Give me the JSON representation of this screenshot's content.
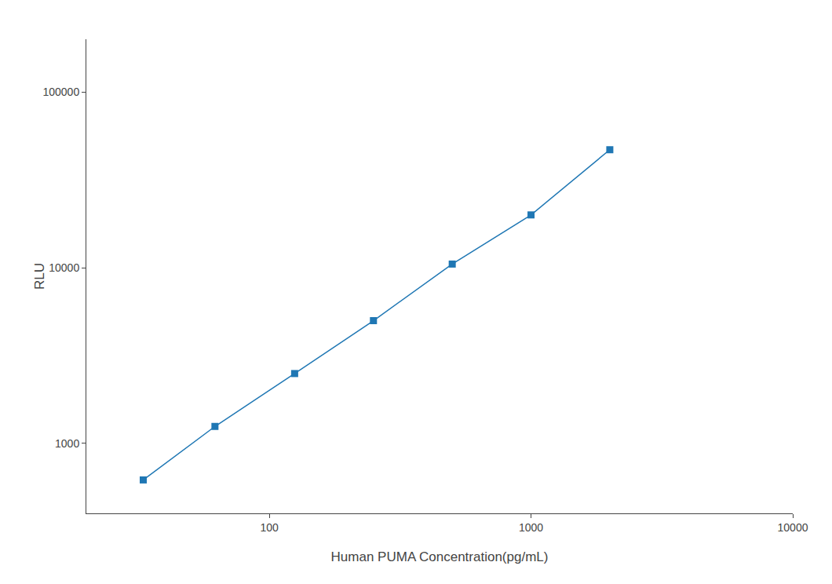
{
  "chart_data": {
    "type": "line",
    "x": [
      33,
      62,
      125,
      250,
      500,
      1000,
      2000
    ],
    "values": [
      620,
      1250,
      2500,
      5000,
      10500,
      20000,
      47000
    ],
    "xlabel": "Human PUMA Concentration(pg/mL)",
    "ylabel": "RLU",
    "log": true,
    "xlim": [
      20,
      10000
    ],
    "ylim": [
      400,
      200000
    ],
    "xticks": [
      100,
      1000,
      10000
    ],
    "yticks": [
      1000,
      10000,
      100000
    ],
    "marker": "square",
    "grid": false
  }
}
